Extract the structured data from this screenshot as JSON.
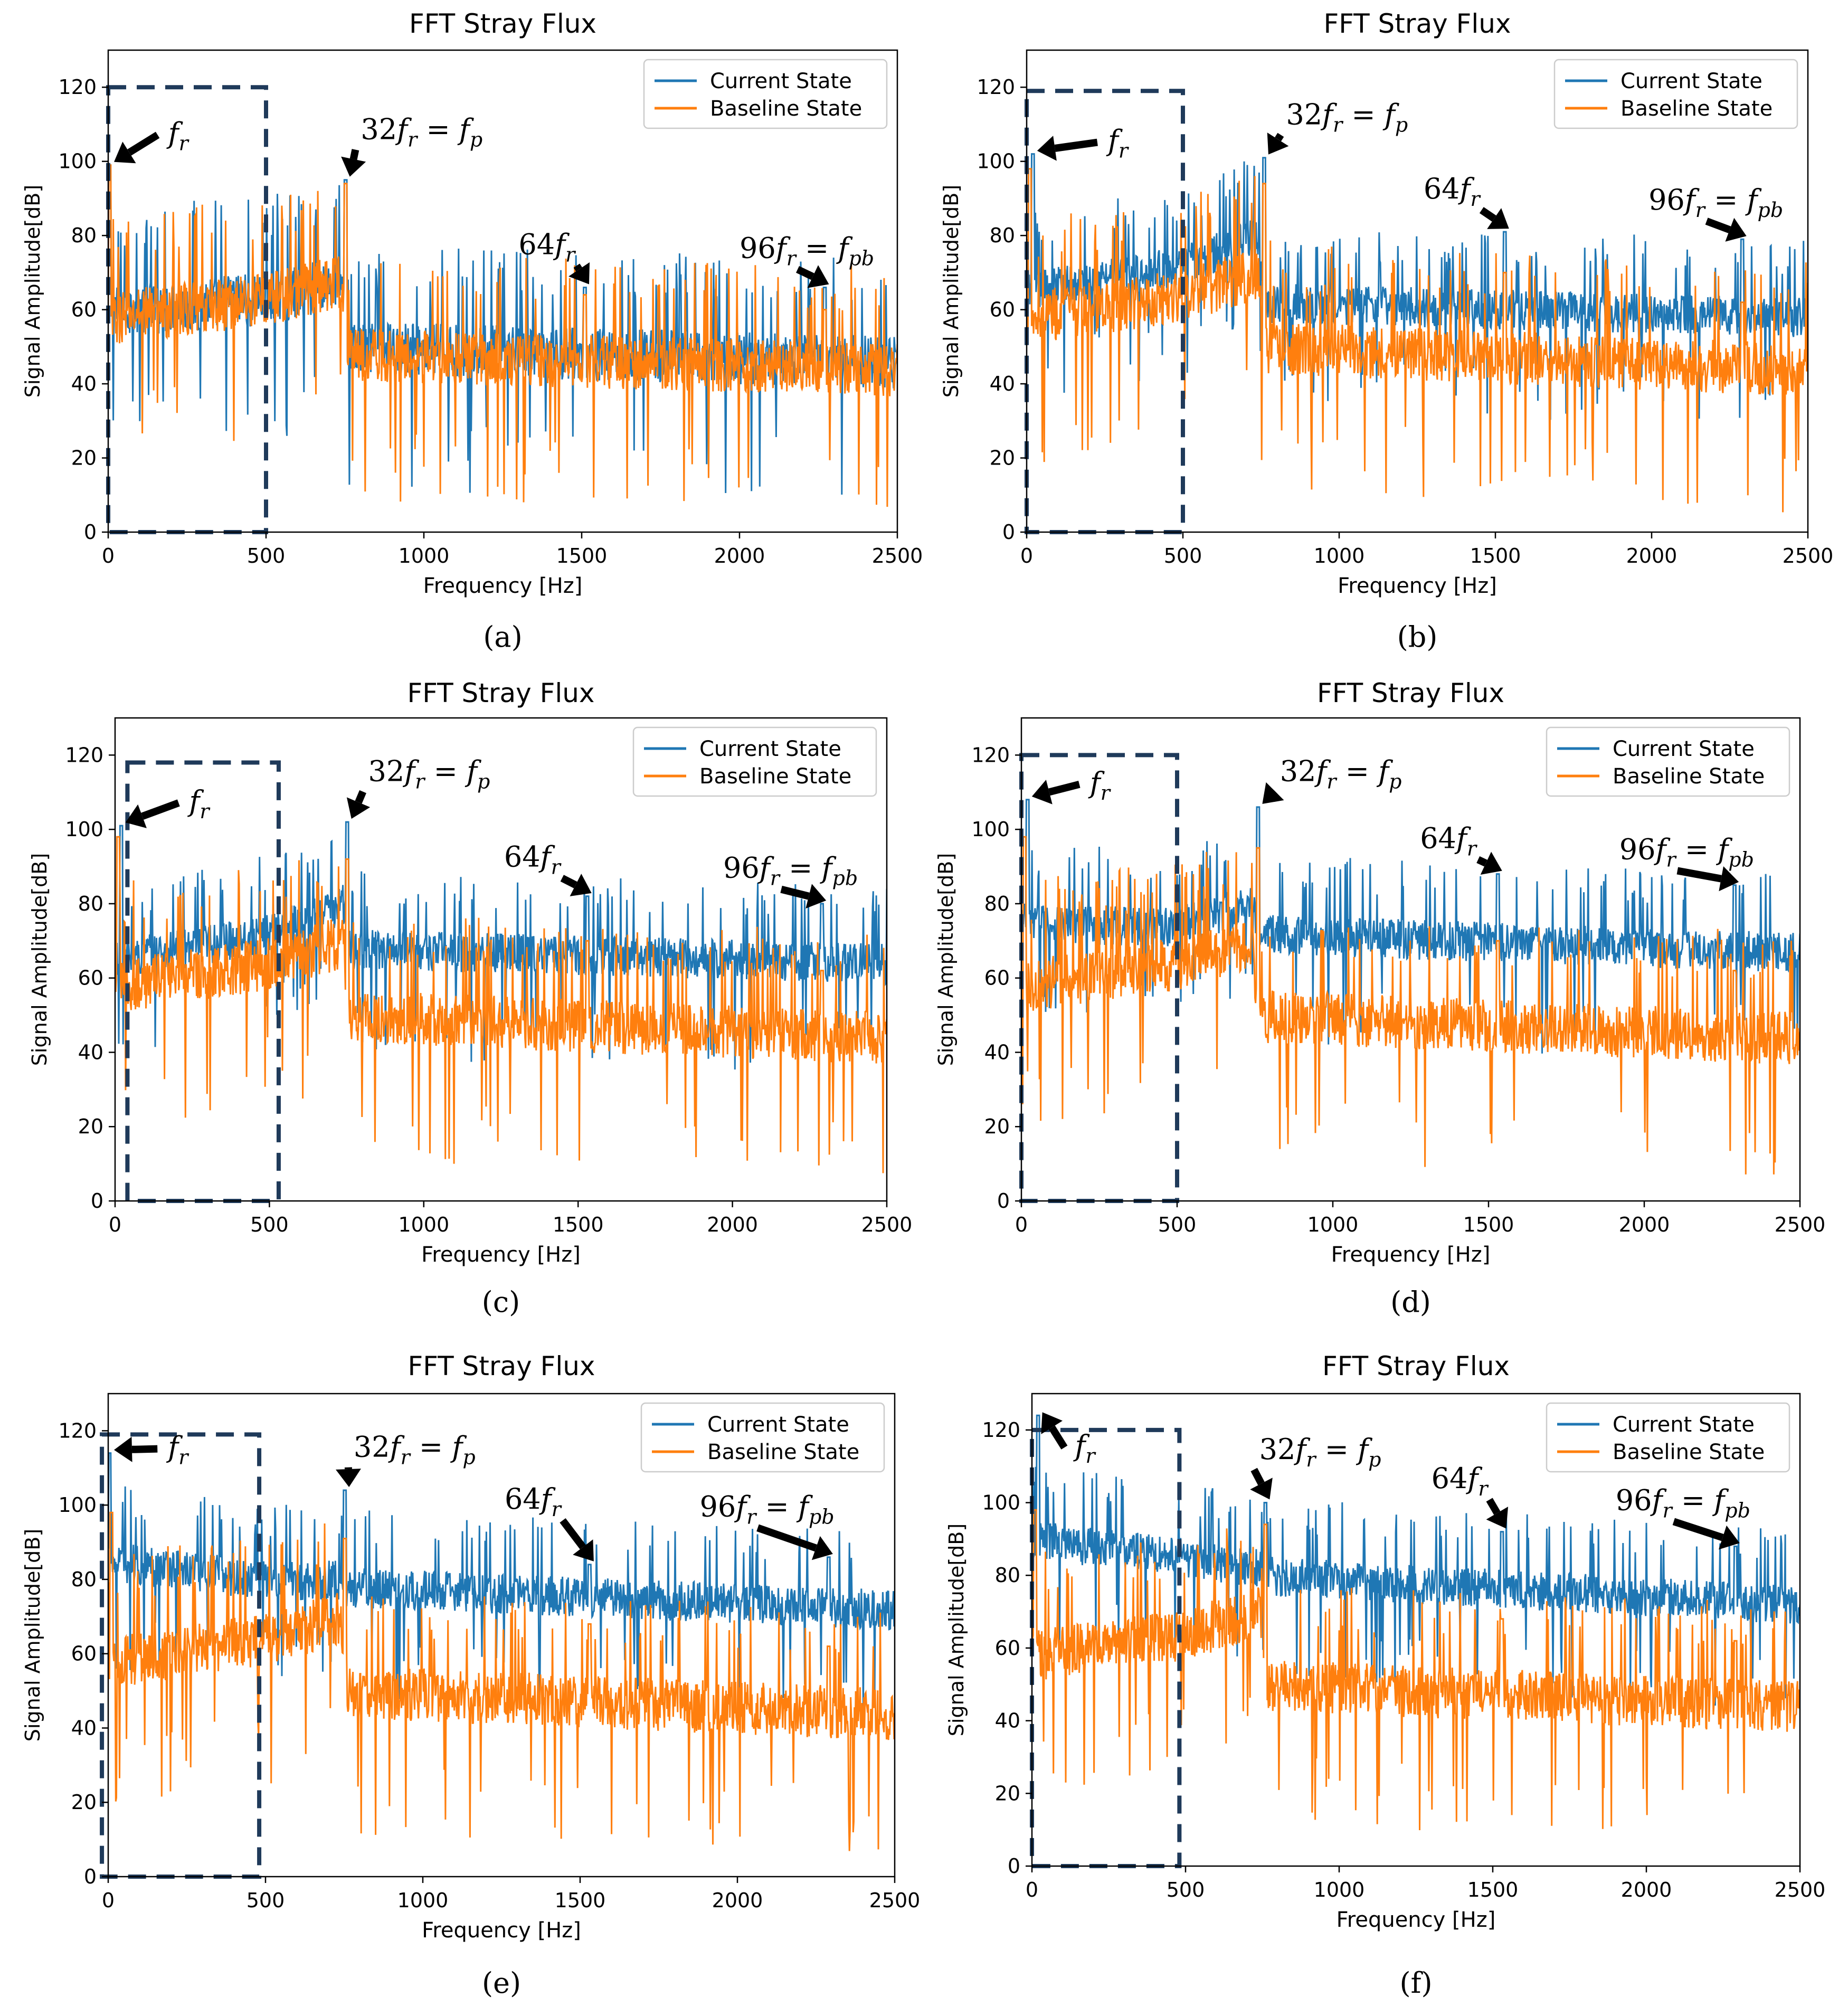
{
  "colors": {
    "current": "#1f77b4",
    "baseline": "#ff7f0e",
    "box": "#1f3a5a",
    "axis": "#000000",
    "grid": "#cccccc",
    "arrow": "#000000"
  },
  "chart_data": [
    {
      "id": "a",
      "type": "line",
      "title": "FFT Stray Flux",
      "xlabel": "Frequency [Hz]",
      "ylabel": "Signal Amplitude[dB]",
      "xlim": [
        0,
        2500
      ],
      "ylim": [
        0,
        130
      ],
      "xticks": [
        0,
        500,
        1000,
        1500,
        2000,
        2500
      ],
      "yticks": [
        0,
        20,
        40,
        60,
        80,
        100,
        120
      ],
      "legend": [
        "Current State",
        "Baseline State"
      ],
      "legend_position": "top-right",
      "caption": "(a)",
      "dashed_box_x": [
        0,
        500
      ],
      "dashed_box_y": [
        0,
        120
      ],
      "series": [
        {
          "name": "Current State",
          "profile": [
            [
              0,
              60
            ],
            [
              500,
              63
            ],
            [
              740,
              68
            ],
            [
              760,
              50
            ],
            [
              2500,
              46
            ]
          ],
          "noise": 8,
          "peaks": [
            [
              5,
              99
            ],
            [
              752,
              95
            ],
            [
              1510,
              66
            ],
            [
              2270,
              66
            ]
          ]
        },
        {
          "name": "Baseline State",
          "profile": [
            [
              0,
              58
            ],
            [
              500,
              63
            ],
            [
              740,
              68
            ],
            [
              760,
              48
            ],
            [
              2500,
              44
            ]
          ],
          "noise": 8,
          "peaks": [
            [
              5,
              99
            ],
            [
              752,
              94
            ],
            [
              1510,
              64
            ],
            [
              2270,
              60
            ]
          ]
        }
      ],
      "annotations": [
        {
          "base": "f",
          "sub": "r",
          "pre": "",
          "x": 190,
          "y": 105
        },
        {
          "base": "f",
          "sub": "p",
          "pre": "32f_r = ",
          "x": 800,
          "y": 106
        },
        {
          "base": "f",
          "sub": "r",
          "pre": "64",
          "x": 1300,
          "y": 75
        },
        {
          "base": "f",
          "sub": "pb",
          "pre": "96f_r = ",
          "x": 2000,
          "y": 74
        }
      ]
    },
    {
      "id": "b",
      "type": "line",
      "title": "FFT Stray Flux",
      "xlabel": "Frequency [Hz]",
      "ylabel": "Signal Amplitude[dB]",
      "xlim": [
        0,
        2500
      ],
      "ylim": [
        0,
        130
      ],
      "xticks": [
        0,
        500,
        1000,
        1500,
        2000,
        2500
      ],
      "yticks": [
        0,
        20,
        40,
        60,
        80,
        100,
        120
      ],
      "legend": [
        "Current State",
        "Baseline State"
      ],
      "legend_position": "top-right",
      "caption": "(b)",
      "dashed_box_x": [
        0,
        500
      ],
      "dashed_box_y": [
        0,
        119
      ],
      "series": [
        {
          "name": "Current State",
          "profile": [
            [
              0,
              65
            ],
            [
              500,
              72
            ],
            [
              740,
              80
            ],
            [
              760,
              62
            ],
            [
              2500,
              58
            ]
          ],
          "noise": 6,
          "peaks": [
            [
              20,
              102
            ],
            [
              760,
              101
            ],
            [
              1530,
              81
            ],
            [
              2290,
              79
            ]
          ]
        },
        {
          "name": "Baseline State",
          "profile": [
            [
              0,
              58
            ],
            [
              500,
              64
            ],
            [
              740,
              70
            ],
            [
              760,
              50
            ],
            [
              2500,
              44
            ]
          ],
          "noise": 8,
          "peaks": [
            [
              10,
              98
            ],
            [
              760,
              94
            ],
            [
              1530,
              70
            ],
            [
              2290,
              62
            ]
          ]
        }
      ],
      "annotations": [
        {
          "base": "f",
          "sub": "r",
          "pre": "",
          "x": 260,
          "y": 103
        },
        {
          "base": "f",
          "sub": "p",
          "pre": "32f_r = ",
          "x": 830,
          "y": 110
        },
        {
          "base": "f",
          "sub": "r",
          "pre": "64",
          "x": 1270,
          "y": 90
        },
        {
          "base": "f",
          "sub": "pb",
          "pre": "96f_r = ",
          "x": 1990,
          "y": 87
        }
      ]
    },
    {
      "id": "c",
      "type": "line",
      "title": "FFT Stray Flux",
      "xlabel": "Frequency [Hz]",
      "ylabel": "Signal Amplitude[dB]",
      "xlim": [
        0,
        2500
      ],
      "ylim": [
        0,
        130
      ],
      "xticks": [
        0,
        500,
        1000,
        1500,
        2000,
        2500
      ],
      "yticks": [
        0,
        20,
        40,
        60,
        80,
        100,
        120
      ],
      "legend": [
        "Current State",
        "Baseline State"
      ],
      "legend_position": "top-right",
      "caption": "(c)",
      "dashed_box_x": [
        40,
        530
      ],
      "dashed_box_y": [
        0,
        118
      ],
      "series": [
        {
          "name": "Current State",
          "profile": [
            [
              0,
              65
            ],
            [
              500,
              72
            ],
            [
              740,
              80
            ],
            [
              760,
              68
            ],
            [
              2500,
              64
            ]
          ],
          "noise": 6,
          "peaks": [
            [
              20,
              101
            ],
            [
              752,
              102
            ],
            [
              1530,
              82
            ],
            [
              2290,
              80
            ]
          ]
        },
        {
          "name": "Baseline State",
          "profile": [
            [
              0,
              58
            ],
            [
              500,
              64
            ],
            [
              740,
              70
            ],
            [
              760,
              50
            ],
            [
              2500,
              44
            ]
          ],
          "noise": 8,
          "peaks": [
            [
              10,
              98
            ],
            [
              752,
              92
            ],
            [
              1530,
              70
            ],
            [
              2290,
              62
            ]
          ]
        }
      ],
      "annotations": [
        {
          "base": "f",
          "sub": "r",
          "pre": "",
          "x": 240,
          "y": 105
        },
        {
          "base": "f",
          "sub": "p",
          "pre": "32f_r = ",
          "x": 820,
          "y": 113
        },
        {
          "base": "f",
          "sub": "r",
          "pre": "64",
          "x": 1260,
          "y": 90
        },
        {
          "base": "f",
          "sub": "pb",
          "pre": "96f_r = ",
          "x": 1970,
          "y": 87
        }
      ]
    },
    {
      "id": "d",
      "type": "line",
      "title": "FFT Stray Flux",
      "xlabel": "Frequency [Hz]",
      "ylabel": "Signal Amplitude[dB]",
      "xlim": [
        0,
        2500
      ],
      "ylim": [
        0,
        130
      ],
      "xticks": [
        0,
        500,
        1000,
        1500,
        2000,
        2500
      ],
      "yticks": [
        0,
        20,
        40,
        60,
        80,
        100,
        120
      ],
      "legend": [
        "Current State",
        "Baseline State"
      ],
      "legend_position": "top-right",
      "caption": "(d)",
      "dashed_box_x": [
        0,
        500
      ],
      "dashed_box_y": [
        0,
        120
      ],
      "series": [
        {
          "name": "Current State",
          "profile": [
            [
              0,
              75
            ],
            [
              500,
              74
            ],
            [
              740,
              80
            ],
            [
              760,
              72
            ],
            [
              2500,
              67
            ]
          ],
          "noise": 6,
          "peaks": [
            [
              20,
              108
            ],
            [
              760,
              106
            ],
            [
              1530,
              88
            ],
            [
              2290,
              85
            ]
          ]
        },
        {
          "name": "Baseline State",
          "profile": [
            [
              0,
              58
            ],
            [
              500,
              64
            ],
            [
              740,
              70
            ],
            [
              760,
              50
            ],
            [
              2500,
              44
            ]
          ],
          "noise": 8,
          "peaks": [
            [
              10,
              98
            ],
            [
              760,
              95
            ],
            [
              1530,
              70
            ],
            [
              2290,
              62
            ]
          ]
        }
      ],
      "annotations": [
        {
          "base": "f",
          "sub": "r",
          "pre": "",
          "x": 220,
          "y": 110
        },
        {
          "base": "f",
          "sub": "p",
          "pre": "32f_r = ",
          "x": 830,
          "y": 113
        },
        {
          "base": "f",
          "sub": "r",
          "pre": "64",
          "x": 1280,
          "y": 95
        },
        {
          "base": "f",
          "sub": "pb",
          "pre": "96f_r = ",
          "x": 1920,
          "y": 92
        }
      ]
    },
    {
      "id": "e",
      "type": "line",
      "title": "FFT Stray Flux",
      "xlabel": "Frequency [Hz]",
      "ylabel": "Signal Amplitude[dB]",
      "xlim": [
        0,
        2500
      ],
      "ylim": [
        0,
        130
      ],
      "xticks": [
        0,
        500,
        1000,
        1500,
        2000,
        2500
      ],
      "yticks": [
        0,
        20,
        40,
        60,
        80,
        100,
        120
      ],
      "legend": [
        "Current State",
        "Baseline State"
      ],
      "legend_position": "top-right",
      "caption": "(e)",
      "dashed_box_x": [
        -20,
        480
      ],
      "dashed_box_y": [
        0,
        119
      ],
      "series": [
        {
          "name": "Current State",
          "profile": [
            [
              0,
              85
            ],
            [
              500,
              80
            ],
            [
              740,
              80
            ],
            [
              760,
              78
            ],
            [
              2500,
              72
            ]
          ],
          "noise": 6,
          "peaks": [
            [
              5,
              114
            ],
            [
              752,
              104
            ],
            [
              1530,
              84
            ],
            [
              2290,
              86
            ]
          ]
        },
        {
          "name": "Baseline State",
          "profile": [
            [
              0,
              58
            ],
            [
              500,
              64
            ],
            [
              740,
              70
            ],
            [
              760,
              50
            ],
            [
              2500,
              44
            ]
          ],
          "noise": 8,
          "peaks": [
            [
              10,
              98
            ],
            [
              752,
              91
            ],
            [
              1530,
              68
            ],
            [
              2290,
              62
            ]
          ]
        }
      ],
      "annotations": [
        {
          "base": "f",
          "sub": "r",
          "pre": "",
          "x": 190,
          "y": 113
        },
        {
          "base": "f",
          "sub": "p",
          "pre": "32f_r = ",
          "x": 780,
          "y": 113
        },
        {
          "base": "f",
          "sub": "r",
          "pre": "64",
          "x": 1260,
          "y": 99
        },
        {
          "base": "f",
          "sub": "pb",
          "pre": "96f_r = ",
          "x": 1880,
          "y": 97
        }
      ]
    },
    {
      "id": "f",
      "type": "line",
      "title": "FFT Stray Flux",
      "xlabel": "Frequency [Hz]",
      "ylabel": "Signal Amplitude[dB]",
      "xlim": [
        0,
        2500
      ],
      "ylim": [
        0,
        130
      ],
      "xticks": [
        0,
        500,
        1000,
        1500,
        2000,
        2500
      ],
      "yticks": [
        0,
        20,
        40,
        60,
        80,
        100,
        120
      ],
      "legend": [
        "Current State",
        "Baseline State"
      ],
      "legend_position": "top-right",
      "caption": "(f)",
      "dashed_box_x": [
        0,
        480
      ],
      "dashed_box_y": [
        0,
        120
      ],
      "series": [
        {
          "name": "Current State",
          "profile": [
            [
              0,
              90
            ],
            [
              500,
              85
            ],
            [
              740,
              82
            ],
            [
              760,
              80
            ],
            [
              2500,
              72
            ]
          ],
          "noise": 6,
          "peaks": [
            [
              20,
              124
            ],
            [
              760,
              100
            ],
            [
              1530,
              92
            ],
            [
              2290,
              88
            ]
          ]
        },
        {
          "name": "Baseline State",
          "profile": [
            [
              0,
              58
            ],
            [
              500,
              64
            ],
            [
              740,
              70
            ],
            [
              760,
              50
            ],
            [
              2500,
              44
            ]
          ],
          "noise": 8,
          "peaks": [
            [
              10,
              98
            ],
            [
              760,
              94
            ],
            [
              1530,
              68
            ],
            [
              2290,
              62
            ]
          ]
        }
      ],
      "annotations": [
        {
          "base": "f",
          "sub": "r",
          "pre": "",
          "x": 140,
          "y": 113
        },
        {
          "base": "f",
          "sub": "p",
          "pre": "32f_r = ",
          "x": 740,
          "y": 112
        },
        {
          "base": "f",
          "sub": "r",
          "pre": "64",
          "x": 1300,
          "y": 104
        },
        {
          "base": "f",
          "sub": "pb",
          "pre": "96f_r = ",
          "x": 1900,
          "y": 98
        }
      ]
    }
  ]
}
